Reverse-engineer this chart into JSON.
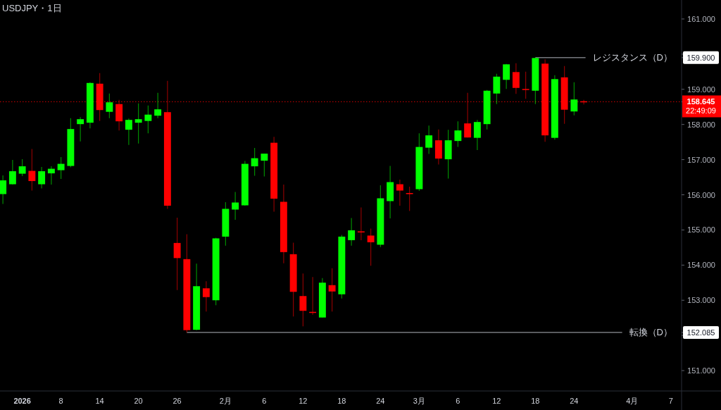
{
  "chart_data": {
    "type": "candlestick",
    "title": "USDJPY・1日",
    "categories": [
      null,
      null,
      "2026",
      null,
      null,
      null,
      "8",
      null,
      null,
      null,
      "14",
      null,
      null,
      null,
      "20",
      null,
      null,
      null,
      "26",
      null,
      null,
      null,
      null,
      "2月",
      null,
      null,
      null,
      "6",
      null,
      null,
      null,
      "12",
      null,
      null,
      null,
      "18",
      null,
      null,
      null,
      "24",
      null,
      null,
      null,
      "3月",
      null,
      null,
      null,
      "6",
      null,
      null,
      null,
      "12",
      null,
      null,
      null,
      "18",
      null,
      null,
      null,
      "24",
      null,
      null,
      null,
      null,
      null,
      "4月",
      null,
      null,
      null,
      "7"
    ],
    "ohlc": [
      [
        156.02,
        156.55,
        155.74,
        156.41
      ],
      [
        156.3,
        156.99,
        156.29,
        156.67
      ],
      [
        156.6,
        157.01,
        156.53,
        156.81
      ],
      [
        156.68,
        157.3,
        156.12,
        156.39
      ],
      [
        156.3,
        156.79,
        156.18,
        156.67
      ],
      [
        156.61,
        156.81,
        156.29,
        156.74
      ],
      [
        156.7,
        157.07,
        156.45,
        156.88
      ],
      [
        156.82,
        158.18,
        156.78,
        157.87
      ],
      [
        158.01,
        158.21,
        157.52,
        158.15
      ],
      [
        158.05,
        159.2,
        157.89,
        159.18
      ],
      [
        159.16,
        159.46,
        158.1,
        158.41
      ],
      [
        158.36,
        158.88,
        158.18,
        158.63
      ],
      [
        158.58,
        158.7,
        157.83,
        158.09
      ],
      [
        157.85,
        158.17,
        157.42,
        158.13
      ],
      [
        158.05,
        158.6,
        157.46,
        158.15
      ],
      [
        158.1,
        158.54,
        157.75,
        158.28
      ],
      [
        158.25,
        158.9,
        158.18,
        158.43
      ],
      [
        158.35,
        159.24,
        155.6,
        155.69
      ],
      [
        154.63,
        155.35,
        153.29,
        154.2
      ],
      [
        154.17,
        154.88,
        152.085,
        152.15
      ],
      [
        152.16,
        154.04,
        152.15,
        153.4
      ],
      [
        153.34,
        153.54,
        152.68,
        153.09
      ],
      [
        153.0,
        154.78,
        152.86,
        154.76
      ],
      [
        154.81,
        155.79,
        154.55,
        155.6
      ],
      [
        155.58,
        156.08,
        155.29,
        155.78
      ],
      [
        155.7,
        156.96,
        155.69,
        156.88
      ],
      [
        156.81,
        157.33,
        156.54,
        157.04
      ],
      [
        156.97,
        157.17,
        156.52,
        157.17
      ],
      [
        157.48,
        157.65,
        155.52,
        155.89
      ],
      [
        155.8,
        156.29,
        154.05,
        154.37
      ],
      [
        154.31,
        154.64,
        152.54,
        153.24
      ],
      [
        153.12,
        153.76,
        152.26,
        152.7
      ],
      [
        152.67,
        153.66,
        152.59,
        152.65
      ],
      [
        152.51,
        153.63,
        152.51,
        153.5
      ],
      [
        153.43,
        153.91,
        152.68,
        153.25
      ],
      [
        153.17,
        154.86,
        153.05,
        154.81
      ],
      [
        154.71,
        155.34,
        154.55,
        154.99
      ],
      [
        154.96,
        155.64,
        154.71,
        154.94
      ],
      [
        154.84,
        155.04,
        153.98,
        154.65
      ],
      [
        154.58,
        156.27,
        154.51,
        155.9
      ],
      [
        155.82,
        156.82,
        155.33,
        156.36
      ],
      [
        156.3,
        156.43,
        155.69,
        156.12
      ],
      [
        156.05,
        156.23,
        155.54,
        156.03
      ],
      [
        156.16,
        157.75,
        156.11,
        157.36
      ],
      [
        157.34,
        157.97,
        157.16,
        157.69
      ],
      [
        157.55,
        157.86,
        156.86,
        157.03
      ],
      [
        157.01,
        157.85,
        156.46,
        157.55
      ],
      [
        157.53,
        158.09,
        157.36,
        157.83
      ],
      [
        158.03,
        158.9,
        157.63,
        157.63
      ],
      [
        157.62,
        158.13,
        157.27,
        158.07
      ],
      [
        158.01,
        158.98,
        157.86,
        158.96
      ],
      [
        158.88,
        159.44,
        158.58,
        159.36
      ],
      [
        159.27,
        159.72,
        159.01,
        159.71
      ],
      [
        159.49,
        159.74,
        158.87,
        159.04
      ],
      [
        159.01,
        159.5,
        158.73,
        158.99
      ],
      [
        158.96,
        159.9,
        158.58,
        159.89
      ],
      [
        159.73,
        159.85,
        157.51,
        157.69
      ],
      [
        157.62,
        159.4,
        157.57,
        159.29
      ],
      [
        159.34,
        159.66,
        158.02,
        158.42
      ],
      [
        158.37,
        159.2,
        158.26,
        158.71
      ],
      [
        158.66,
        158.7,
        158.57,
        158.645
      ],
      null,
      null,
      null,
      null,
      null,
      null,
      null,
      null,
      null
    ],
    "colors": [
      "#00ff00",
      "#00ff00",
      "#00ff00",
      "#ff0000",
      "#00ff00",
      "#00ff00",
      "#00ff00",
      "#00ff00",
      "#00ff00",
      "#00ff00",
      "#ff0000",
      "#00ff00",
      "#ff0000",
      "#00ff00",
      "#00ff00",
      "#00ff00",
      "#00ff00",
      "#ff0000",
      "#ff0000",
      "#ff0000",
      "#00ff00",
      "#ff0000",
      "#00ff00",
      "#00ff00",
      "#00ff00",
      "#00ff00",
      "#00ff00",
      "#00ff00",
      "#ff0000",
      "#ff0000",
      "#ff0000",
      "#ff0000",
      "#ff0000",
      "#00ff00",
      "#ff0000",
      "#00ff00",
      "#00ff00",
      "#ff0000",
      "#ff0000",
      "#00ff00",
      "#00ff00",
      "#ff0000",
      "#ff0000",
      "#00ff00",
      "#00ff00",
      "#ff0000",
      "#00ff00",
      "#00ff00",
      "#ff0000",
      "#00ff00",
      "#00ff00",
      "#00ff00",
      "#00ff00",
      "#ff0000",
      "#ff0000",
      "#00ff00",
      "#ff0000",
      "#00ff00",
      "#ff0000",
      "#00ff00",
      "#ff0000",
      null,
      null,
      null,
      null,
      null,
      null,
      null,
      null,
      null
    ],
    "ylim": [
      150.42,
      161.54
    ],
    "yticks": [
      {
        "value": 151,
        "label": "151.000"
      },
      {
        "value": 152,
        "label": null
      },
      {
        "value": 152.085,
        "label": "152.085"
      },
      {
        "value": 153,
        "label": "153.000"
      },
      {
        "value": 154,
        "label": "154.000"
      },
      {
        "value": 155,
        "label": "155.000"
      },
      {
        "value": 156,
        "label": "156.000"
      },
      {
        "value": 157,
        "label": "157.000"
      },
      {
        "value": 158,
        "label": "158.000"
      },
      {
        "value": 158.645,
        "label": "158.645"
      },
      {
        "value": 159,
        "label": "159.000"
      },
      {
        "value": 159.9,
        "label": "159.900"
      },
      {
        "value": 160,
        "label": null
      },
      {
        "value": 161,
        "label": "161.000"
      }
    ],
    "ref_lines": [
      {
        "axis": "y",
        "value": 159.9,
        "label": "レジスタンス（D）",
        "color": "#b2b5be",
        "line_style": "solid"
      },
      {
        "axis": "y",
        "value": 152.085,
        "label": "転換（D）",
        "color": "#b2b5be",
        "line_style": "solid"
      },
      {
        "axis": "y",
        "value": 158.645,
        "label": null,
        "color": "#ff0000",
        "line_style": "dotted"
      }
    ],
    "annotations": [
      "22:49:09"
    ]
  }
}
